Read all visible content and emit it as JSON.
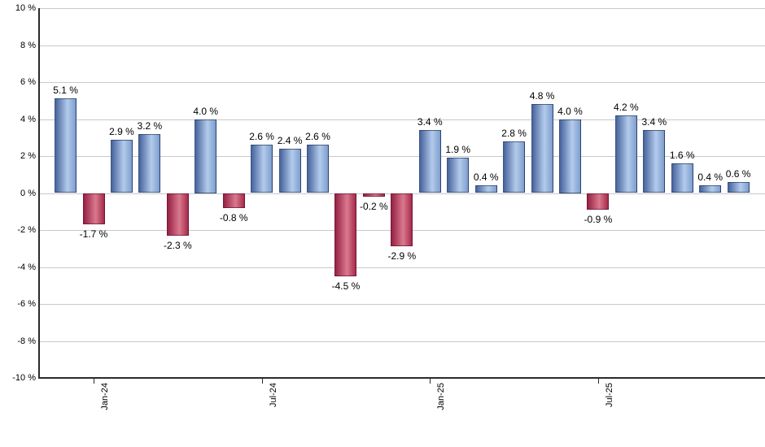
{
  "chart_data": {
    "type": "bar",
    "values": [
      5.1,
      -1.7,
      2.9,
      3.2,
      -2.3,
      4.0,
      -0.8,
      2.6,
      2.4,
      2.6,
      -4.5,
      -0.2,
      -2.9,
      3.4,
      1.9,
      0.4,
      2.8,
      4.8,
      4.0,
      -0.9,
      4.2,
      3.4,
      1.6,
      0.4,
      0.6
    ],
    "bar_labels": [
      "5.1 %",
      "-1.7 %",
      "2.9 %",
      "3.2 %",
      "-2.3 %",
      "4.0 %",
      "-0.8 %",
      "2.6 %",
      "2.4 %",
      "2.6 %",
      "-4.5 %",
      "-0.2 %",
      "-2.9 %",
      "3.4 %",
      "1.9 %",
      "0.4 %",
      "2.8 %",
      "4.8 %",
      "4.0 %",
      "-0.9 %",
      "4.2 %",
      "3.4 %",
      "1.6 %",
      "0.4 %",
      "0.6 %"
    ],
    "x_ticks": [
      {
        "bar_index": 1,
        "label": "Jan-24"
      },
      {
        "bar_index": 7,
        "label": "Jul-24"
      },
      {
        "bar_index": 13,
        "label": "Jan-25"
      },
      {
        "bar_index": 19,
        "label": "Jul-25"
      }
    ],
    "y_tick_labels": [
      "10 %",
      "8 %",
      "6 %",
      "4 %",
      "2 %",
      "0 %",
      "-2 %",
      "-4 %",
      "-6 %",
      "-8 %",
      "-10 %"
    ],
    "ylim": [
      -10,
      10
    ],
    "y_step": 2,
    "grid": "horizontal",
    "legend": "none",
    "colors": {
      "positive_bar_dark": "#46639c",
      "positive_bar_light": "#b3cbec",
      "positive_bar_mid": "#7e9ecd",
      "negative_bar_dark": "#962144",
      "negative_bar_light": "#d9798f",
      "negative_bar_mid": "#a62b4a",
      "gridline": "#c9c9c9",
      "axis": "#2b2b2b",
      "label_text": "#000000"
    }
  }
}
